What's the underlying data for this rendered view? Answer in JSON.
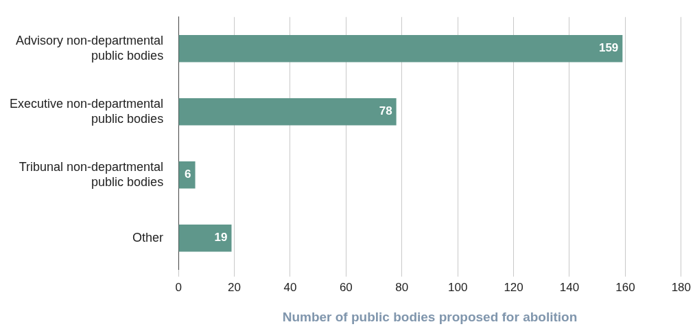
{
  "chart_data": {
    "type": "bar",
    "orientation": "horizontal",
    "xlabel": "Number of public bodies proposed for abolition",
    "categories": [
      "Advisory non-departmental public bodies",
      "Executive non-departmental public bodies",
      "Tribunal non-departmental public bodies",
      "Other"
    ],
    "values": [
      159,
      78,
      6,
      19
    ],
    "color": "#5f978b",
    "data_labels": true,
    "xlim": [
      0,
      180
    ],
    "xticks": [
      0,
      20,
      40,
      60,
      80,
      100,
      120,
      140,
      160,
      180
    ],
    "grid": "x",
    "legend": false
  }
}
